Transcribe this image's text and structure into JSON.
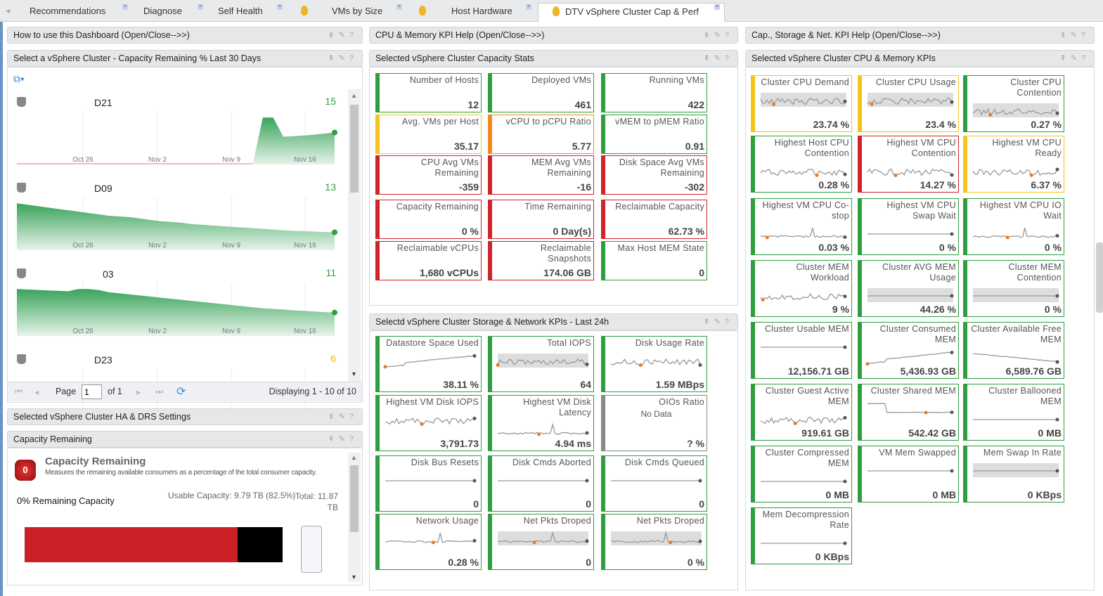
{
  "tabs": [
    {
      "label": "Recommendations",
      "active": false,
      "icon": ""
    },
    {
      "label": "Diagnose",
      "active": false,
      "icon": ""
    },
    {
      "label": "Self Health",
      "active": false,
      "icon": ""
    },
    {
      "label": "VMs by Size",
      "active": false,
      "icon": "flame-icon"
    },
    {
      "label": "Host Hardware",
      "active": false,
      "icon": "flame-icon"
    },
    {
      "label": "DTV vSphere Cluster Cap & Perf",
      "active": true,
      "icon": "flame-icon"
    }
  ],
  "panels": {
    "how_to": "How to use this Dashboard (Open/Close-->>)",
    "cpu_help": "CPU & Memory KPI Help (Open/Close-->>)",
    "cap_help": "Cap., Storage & Net. KPI Help (Open/Close-->>)",
    "select_cluster": "Select a vSphere Cluster - Capacity Remaining % Last 30 Days",
    "cap_stats": "Selected vSphere Cluster Capacity Stats",
    "cpu_mem": "Selected vSphere Cluster CPU & Memory KPIs",
    "storage_net": "Selectd vSphere Cluster Storage & Network KPIs - Last 24h",
    "ha_drs": "Selected vSphere Cluster HA & DRS Settings",
    "cap_remaining": "Capacity Remaining"
  },
  "clusters": {
    "date_ticks": [
      "Oct 26",
      "Nov 2",
      "Nov 9",
      "Nov 16"
    ],
    "items": [
      {
        "name": "D21",
        "value": "15",
        "value_color": "#2e9e3e",
        "values": [
          0,
          0,
          0,
          0,
          0,
          0,
          0,
          0,
          0,
          0,
          0,
          0,
          0,
          0,
          0,
          0,
          0,
          0,
          0,
          0,
          0,
          0,
          0,
          0,
          22,
          22,
          13,
          13.3,
          13.6,
          14,
          14.5,
          15
        ]
      },
      {
        "name": "D09",
        "value": "13",
        "value_color": "#2e9e3e",
        "values": [
          34,
          33,
          32,
          31,
          30,
          29,
          28,
          27,
          26,
          25,
          24.5,
          24,
          23,
          22,
          21,
          20.5,
          20,
          19,
          18.5,
          18,
          17.5,
          17,
          16.5,
          16,
          15.5,
          15,
          14.5,
          14,
          13.8,
          13.5,
          13.2,
          13
        ]
      },
      {
        "name": "03",
        "value": "11",
        "value_color": "#2e9e3e",
        "values": [
          22,
          21.8,
          21.6,
          21.4,
          21.2,
          21,
          22,
          22,
          21.5,
          20.5,
          20,
          19.5,
          19,
          18.5,
          18,
          17.5,
          17,
          16.5,
          16,
          15.5,
          15,
          14.5,
          14,
          13.5,
          13,
          12.7,
          12.4,
          12,
          11.8,
          11.5,
          11.2,
          11
        ]
      },
      {
        "name": "D23",
        "value": "6",
        "value_color": "#f2b705",
        "values": []
      }
    ],
    "pager": {
      "page_label": "Page",
      "page_value": "1",
      "of_label": "of 1",
      "displaying": "Displaying 1 - 10 of 10"
    }
  },
  "capacity_remaining": {
    "title": "Capacity Remaining",
    "badge": "0",
    "description": "Measures the remaining available consumers as a percentage of the total consumer capacity.",
    "remaining_label": "0% Remaining Capacity",
    "usable": "Usable Capacity: 9.79 TB (82.5%)",
    "total": "Total: 11.87 TB",
    "used_fraction": 0.825,
    "colors": {
      "used": "#cc2027",
      "reserved": "#000000"
    }
  },
  "status_colors": {
    "green": "#2e9e3e",
    "yellow": "#f7c31a",
    "orange": "#f5891f",
    "red": "#d1232a",
    "gray": "#888888"
  },
  "cap_stats": [
    {
      "label": "Number of Hosts",
      "value": "12",
      "status": "green"
    },
    {
      "label": "Deployed VMs",
      "value": "461",
      "status": "green"
    },
    {
      "label": "Running VMs",
      "value": "422",
      "status": "green"
    },
    {
      "label": "Avg. VMs per Host",
      "value": "35.17",
      "status": "yellow"
    },
    {
      "label": "vCPU to pCPU Ratio",
      "value": "5.77",
      "status": "orange"
    },
    {
      "label": "vMEM to pMEM Ratio",
      "value": "0.91",
      "status": "green"
    },
    {
      "label": "CPU Avg VMs Remaining",
      "value": "-359",
      "status": "red"
    },
    {
      "label": "MEM Avg VMs Remaining",
      "value": "-16",
      "status": "red"
    },
    {
      "label": "Disk Space Avg VMs Remaining",
      "value": "-302",
      "status": "red"
    },
    {
      "label": "Capacity Remaining",
      "value": "0 %",
      "status": "red"
    },
    {
      "label": "Time Remaining",
      "value": "0 Day(s)",
      "status": "red"
    },
    {
      "label": "Reclaimable Capacity",
      "value": "62.73 %",
      "status": "red"
    },
    {
      "label": "Reclaimable vCPUs",
      "value": "1,680 vCPUs",
      "status": "red"
    },
    {
      "label": "Reclaimable Snapshots",
      "value": "174.06 GB",
      "status": "red"
    },
    {
      "label": "Max Host MEM State",
      "value": "0",
      "status": "green"
    }
  ],
  "storage_net": [
    {
      "label": "Datastore Space Used",
      "value": "38.11 %",
      "status": "green",
      "spark": "rising"
    },
    {
      "label": "Total IOPS",
      "value": "64",
      "status": "green",
      "spark": "noisy-band"
    },
    {
      "label": "Disk Usage Rate",
      "value": "1.59 MBps",
      "status": "green",
      "spark": "noisy"
    },
    {
      "label": "Highest VM Disk IOPS",
      "value": "3,791.73",
      "status": "green",
      "spark": "noisy"
    },
    {
      "label": "Highest VM Disk Latency",
      "value": "4.94 ms",
      "status": "green",
      "spark": "spike"
    },
    {
      "label": "OIOs Ratio",
      "sub": "No Data",
      "value": "? %",
      "status": "gray",
      "spark": "none"
    },
    {
      "label": "Disk Bus Resets",
      "value": "0",
      "status": "green",
      "spark": "flat"
    },
    {
      "label": "Disk Cmds Aborted",
      "value": "0",
      "status": "green",
      "spark": "flat"
    },
    {
      "label": "Disk Cmds Queued",
      "value": "0",
      "status": "green",
      "spark": "flat"
    },
    {
      "label": "Network Usage",
      "value": "0.28 %",
      "status": "green",
      "spark": "spike"
    },
    {
      "label": "Net Pkts Droped",
      "value": "0",
      "status": "green",
      "spark": "spike-band"
    },
    {
      "label": "Net Pkts Droped",
      "value": "0 %",
      "status": "green",
      "spark": "spike-band"
    }
  ],
  "cpu_mem": [
    {
      "label": "Cluster CPU Demand",
      "value": "23.74 %",
      "status": "yellow",
      "spark": "noisy-band"
    },
    {
      "label": "Cluster CPU Usage",
      "value": "23.4 %",
      "status": "yellow",
      "spark": "noisy-band"
    },
    {
      "label": "Cluster CPU Contention",
      "value": "0.27 %",
      "status": "green",
      "spark": "noisy-band"
    },
    {
      "label": "Highest Host CPU Contention",
      "value": "0.28 %",
      "status": "green",
      "spark": "noisy"
    },
    {
      "label": "Highest VM CPU Contention",
      "value": "14.27 %",
      "status": "red",
      "spark": "noisy"
    },
    {
      "label": "Highest VM CPU Ready",
      "value": "6.37 %",
      "status": "yellow",
      "spark": "noisy"
    },
    {
      "label": "Highest VM CPU Co-stop",
      "value": "0.03 %",
      "status": "green",
      "spark": "spike"
    },
    {
      "label": "Highest VM CPU Swap Wait",
      "value": "0 %",
      "status": "green",
      "spark": "flat"
    },
    {
      "label": "Highest VM CPU IO Wait",
      "value": "0 %",
      "status": "green",
      "spark": "spike"
    },
    {
      "label": "Cluster MEM Workload",
      "value": "9 %",
      "status": "green",
      "spark": "noisy"
    },
    {
      "label": "Cluster AVG MEM Usage",
      "value": "44.26 %",
      "status": "green",
      "spark": "flat-band"
    },
    {
      "label": "Cluster MEM Contention",
      "value": "0 %",
      "status": "green",
      "spark": "flat-band"
    },
    {
      "label": "Cluster Usable MEM",
      "value": "12,156.71 GB",
      "status": "green",
      "spark": "flat"
    },
    {
      "label": "Cluster Consumed MEM",
      "value": "5,436.93 GB",
      "status": "green",
      "spark": "rising"
    },
    {
      "label": "Cluster Available Free MEM",
      "value": "6,589.76 GB",
      "status": "green",
      "spark": "falling"
    },
    {
      "label": "Cluster Guest Active MEM",
      "value": "919.61 GB",
      "status": "green",
      "spark": "noisy"
    },
    {
      "label": "Cluster Shared MEM",
      "value": "542.42 GB",
      "status": "green",
      "spark": "step"
    },
    {
      "label": "Cluster Ballooned MEM",
      "value": "0 MB",
      "status": "green",
      "spark": "flat"
    },
    {
      "label": "Cluster Compressed MEM",
      "value": "0 MB",
      "status": "green",
      "spark": "flat"
    },
    {
      "label": "VM Mem Swapped",
      "value": "0 MB",
      "status": "green",
      "spark": "flat"
    },
    {
      "label": "Mem Swap In Rate",
      "value": "0 KBps",
      "status": "green",
      "spark": "flat-band"
    },
    {
      "label": "Mem Decompression Rate",
      "value": "0 KBps",
      "status": "green",
      "spark": "flat"
    }
  ]
}
